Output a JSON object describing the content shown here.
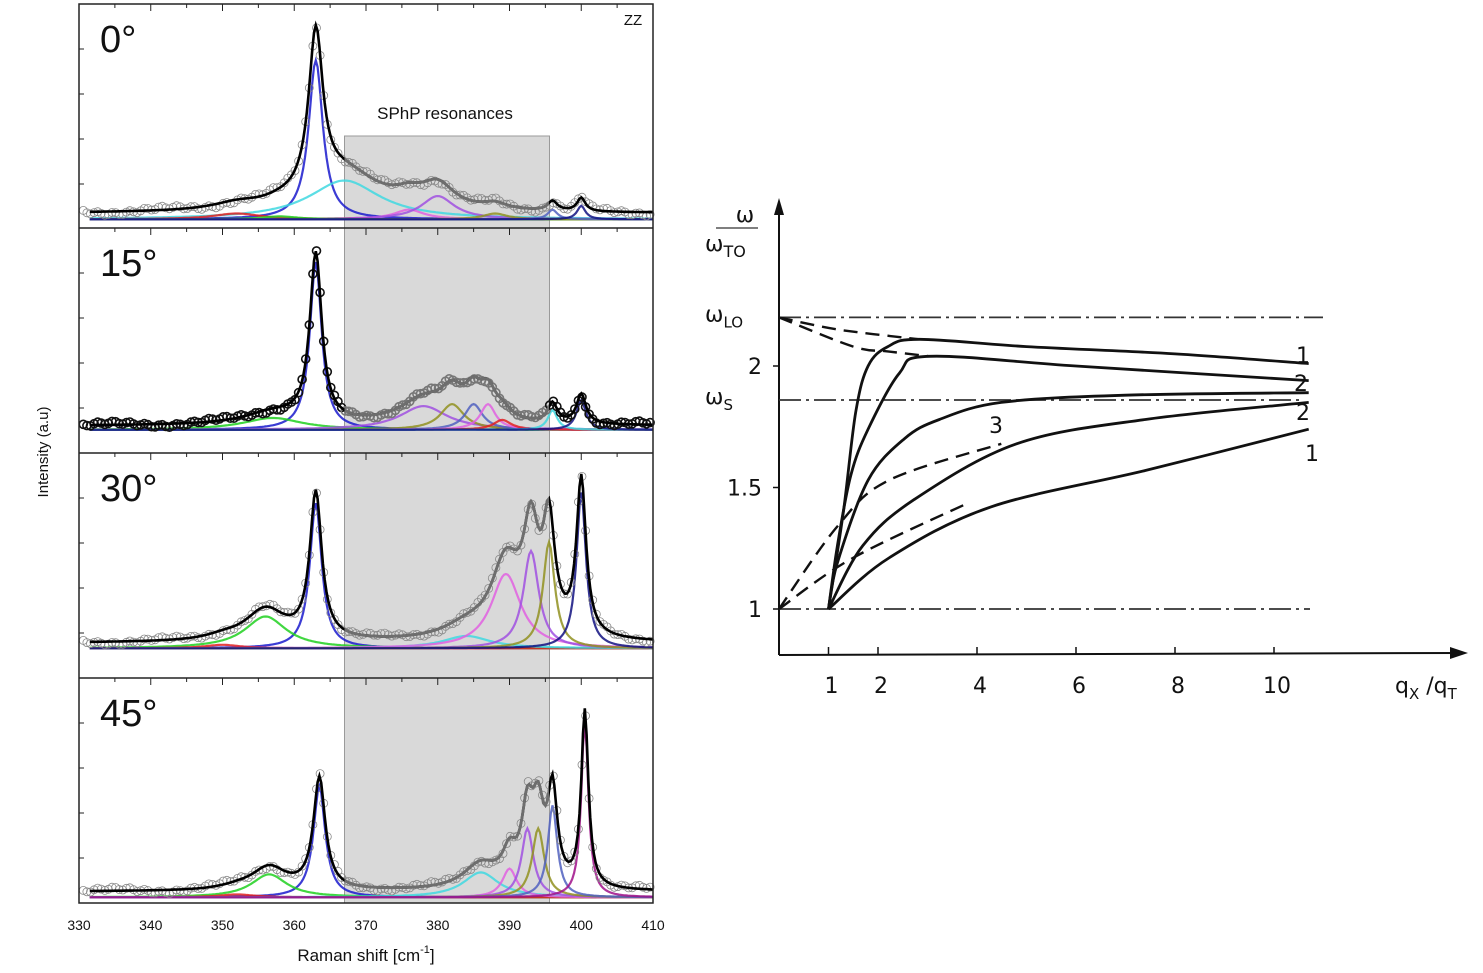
{
  "chart_data": [
    {
      "type": "line",
      "title": "",
      "xlabel": "Raman shift [cm-1]",
      "xlabel_main": "Raman shift [cm",
      "xlabel_sup": "-1",
      "xlabel_end": "]",
      "ylabel": "Intensity (a.u)",
      "xlim": [
        330,
        410
      ],
      "xticks": [
        "330",
        "340",
        "350",
        "360",
        "370",
        "380",
        "390",
        "400",
        "410"
      ],
      "corner_label": "ZZ",
      "shaded_region": {
        "label": "SPhP resonances",
        "x_range": [
          367,
          395.5
        ],
        "color": "#d9d9d9"
      },
      "legend": "none",
      "panels": [
        {
          "label": "0°",
          "baseline": 0.03,
          "components": [
            {
              "center": 363,
              "height": 0.82,
              "hwhm": 1.2,
              "color": "#1a1acc"
            },
            {
              "center": 367,
              "height": 0.2,
              "hwhm": 6,
              "color": "#40d8e0"
            },
            {
              "center": 376,
              "height": 0.05,
              "hwhm": 2.5,
              "color": "#e060e0"
            },
            {
              "center": 380,
              "height": 0.12,
              "hwhm": 2.8,
              "color": "#a050e0"
            },
            {
              "center": 352,
              "height": 0.03,
              "hwhm": 4,
              "color": "#e02020"
            },
            {
              "center": 358,
              "height": 0.015,
              "hwhm": 3,
              "color": "#20d020"
            },
            {
              "center": 388,
              "height": 0.03,
              "hwhm": 2,
              "color": "#909020"
            },
            {
              "center": 396,
              "height": 0.05,
              "hwhm": 0.8,
              "color": "#5060c0"
            },
            {
              "center": 400,
              "height": 0.07,
              "hwhm": 0.7,
              "color": "#101080"
            }
          ]
        },
        {
          "label": "15°",
          "baseline": 0.02,
          "components": [
            {
              "center": 363,
              "height": 0.85,
              "hwhm": 1.0,
              "color": "#1a1acc"
            },
            {
              "center": 357,
              "height": 0.06,
              "hwhm": 5,
              "color": "#20d020"
            },
            {
              "center": 378,
              "height": 0.12,
              "hwhm": 4,
              "color": "#a050e0"
            },
            {
              "center": 382,
              "height": 0.13,
              "hwhm": 2,
              "color": "#909020"
            },
            {
              "center": 385,
              "height": 0.13,
              "hwhm": 1.5,
              "color": "#5060c0"
            },
            {
              "center": 387,
              "height": 0.13,
              "hwhm": 1.3,
              "color": "#e060e0"
            },
            {
              "center": 389,
              "height": 0.05,
              "hwhm": 1.5,
              "color": "#e02020"
            },
            {
              "center": 396,
              "height": 0.1,
              "hwhm": 0.8,
              "color": "#40d8e0"
            },
            {
              "center": 400,
              "height": 0.15,
              "hwhm": 0.8,
              "color": "#101080"
            }
          ]
        },
        {
          "label": "30°",
          "baseline": 0.03,
          "components": [
            {
              "center": 363,
              "height": 0.82,
              "hwhm": 1.0,
              "color": "#1a1acc"
            },
            {
              "center": 356,
              "height": 0.18,
              "hwhm": 3.5,
              "color": "#20d020"
            },
            {
              "center": 350,
              "height": 0.02,
              "hwhm": 3,
              "color": "#e02020"
            },
            {
              "center": 384,
              "height": 0.07,
              "hwhm": 4,
              "color": "#40d8e0"
            },
            {
              "center": 389.5,
              "height": 0.42,
              "hwhm": 2.5,
              "color": "#e060e0"
            },
            {
              "center": 393,
              "height": 0.55,
              "hwhm": 1.3,
              "color": "#a050e0"
            },
            {
              "center": 395.5,
              "height": 0.6,
              "hwhm": 1.0,
              "color": "#909020"
            },
            {
              "center": 400,
              "height": 0.88,
              "hwhm": 0.8,
              "color": "#101080"
            }
          ]
        },
        {
          "label": "45°",
          "baseline": 0.03,
          "components": [
            {
              "center": 363.5,
              "height": 0.58,
              "hwhm": 1.0,
              "color": "#1a1acc"
            },
            {
              "center": 356.5,
              "height": 0.12,
              "hwhm": 3,
              "color": "#20d020"
            },
            {
              "center": 352,
              "height": 0.015,
              "hwhm": 3,
              "color": "#e02020"
            },
            {
              "center": 386,
              "height": 0.13,
              "hwhm": 3,
              "color": "#40d8e0"
            },
            {
              "center": 390,
              "height": 0.15,
              "hwhm": 1.2,
              "color": "#e060e0"
            },
            {
              "center": 392.5,
              "height": 0.36,
              "hwhm": 1.0,
              "color": "#a050e0"
            },
            {
              "center": 394,
              "height": 0.36,
              "hwhm": 1.0,
              "color": "#909020"
            },
            {
              "center": 396,
              "height": 0.48,
              "hwhm": 0.8,
              "color": "#5060c0"
            },
            {
              "center": 400.5,
              "height": 0.92,
              "hwhm": 0.6,
              "color": "#a0108a"
            }
          ]
        }
      ]
    },
    {
      "type": "line",
      "title": "",
      "ylabel_num": "ω",
      "ylabel_den": "ω",
      "ylabel_den_sub": "TO",
      "xlabel_main": "q",
      "xlabel_sub1": "X",
      "xlabel_mid": " /q",
      "xlabel_sub2": "T",
      "xticks": [
        "1",
        "2",
        "4",
        "6",
        "8",
        "10"
      ],
      "xtick_values": [
        1,
        2,
        4,
        6,
        8,
        10
      ],
      "yticks": [
        {
          "label": "ω",
          "sub": "LO",
          "value": 2.2
        },
        {
          "label": "2",
          "sub": "",
          "value": 2.0
        },
        {
          "label": "ω",
          "sub": "S",
          "value": 1.86
        },
        {
          "label": "1.5",
          "sub": "",
          "value": 1.5
        },
        {
          "label": "1",
          "sub": "",
          "value": 1.0
        }
      ],
      "reference_lines": [
        2.2,
        1.86,
        1.0
      ],
      "series": [
        {
          "style": "solid",
          "points": [
            [
              1,
              1
            ],
            [
              1.3,
              1.4
            ],
            [
              1.55,
              1.81
            ],
            [
              1.8,
              2.0
            ],
            [
              2.2,
              2.08
            ],
            [
              2.84,
              2.11
            ],
            [
              5,
              2.08
            ],
            [
              8,
              2.05
            ],
            [
              10.7,
              2.01
            ]
          ]
        },
        {
          "style": "solid",
          "points": [
            [
              1,
              1
            ],
            [
              1.18,
              1.26
            ],
            [
              1.45,
              1.55
            ],
            [
              1.8,
              1.74
            ],
            [
              2.43,
              1.97
            ],
            [
              3.04,
              2.04
            ],
            [
              6,
              2.0
            ],
            [
              10.7,
              1.94
            ]
          ]
        },
        {
          "style": "solid",
          "points": [
            [
              1,
              1
            ],
            [
              1.18,
              1.19
            ],
            [
              1.8,
              1.53
            ],
            [
              2.53,
              1.7
            ],
            [
              3.24,
              1.78
            ],
            [
              4.49,
              1.85
            ],
            [
              7,
              1.88
            ],
            [
              10.7,
              1.89
            ]
          ]
        },
        {
          "style": "solid",
          "points": [
            [
              1,
              1
            ],
            [
              1.69,
              1.26
            ],
            [
              2.73,
              1.45
            ],
            [
              4.8,
              1.68
            ],
            [
              7.4,
              1.78
            ],
            [
              10.7,
              1.85
            ]
          ]
        },
        {
          "style": "solid",
          "points": [
            [
              1,
              1
            ],
            [
              2.22,
              1.21
            ],
            [
              4.28,
              1.42
            ],
            [
              7.4,
              1.57
            ],
            [
              10.7,
              1.74
            ]
          ]
        },
        {
          "style": "dashed",
          "points": [
            [
              0,
              2.2
            ],
            [
              1.2,
              2.15
            ],
            [
              2.84,
              2.11
            ]
          ]
        },
        {
          "style": "dashed",
          "points": [
            [
              0,
              2.2
            ],
            [
              1.5,
              2.08
            ],
            [
              2.2,
              2.06
            ],
            [
              3.04,
              2.04
            ]
          ]
        },
        {
          "style": "dashed",
          "points": [
            [
              0,
              1
            ],
            [
              1.18,
              1.34
            ],
            [
              2.22,
              1.53
            ],
            [
              4.49,
              1.68
            ]
          ]
        },
        {
          "style": "dashed",
          "points": [
            [
              0,
              1
            ],
            [
              1.49,
              1.21
            ],
            [
              3.86,
              1.44
            ]
          ]
        }
      ],
      "curve_labels": [
        "1",
        "2",
        "2",
        "1",
        "3"
      ]
    }
  ]
}
